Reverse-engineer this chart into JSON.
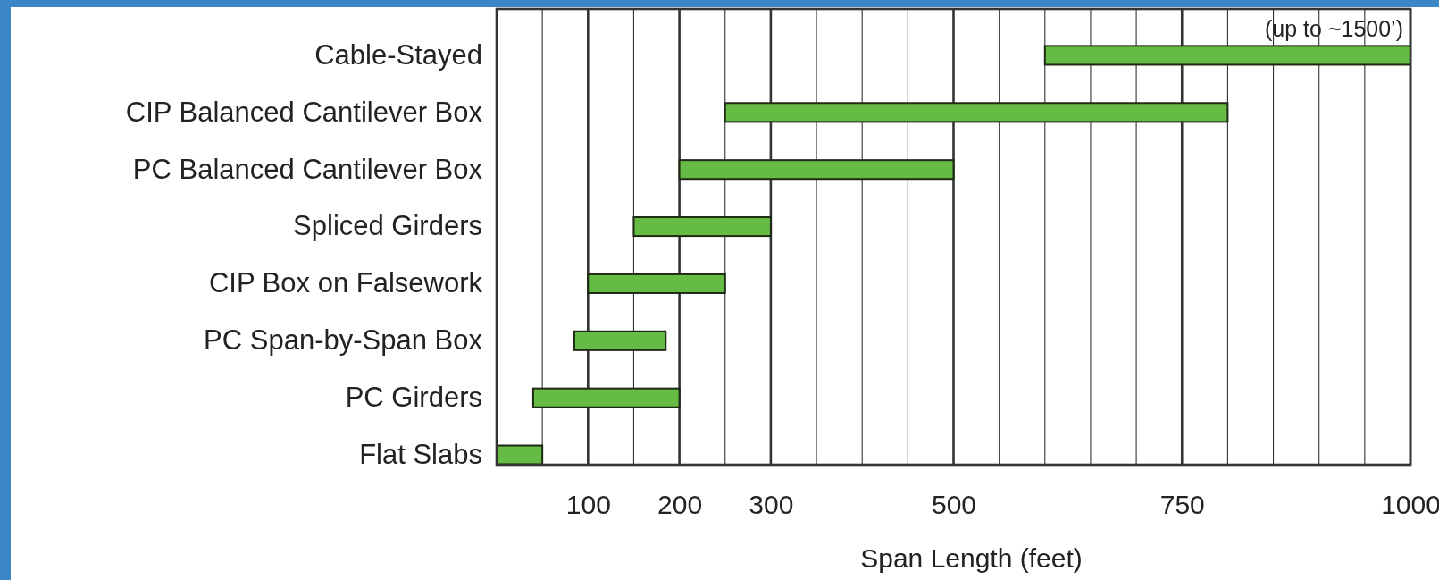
{
  "chart_data": {
    "type": "bar",
    "orientation": "horizontal",
    "xlabel": "Span Length (feet)",
    "categories": [
      "Cable-Stayed",
      "CIP Balanced Cantilever Box",
      "PC Balanced Cantilever Box",
      "Spliced Girders",
      "CIP Box on Falsework",
      "PC Span-by-Span Box",
      "PC Girders",
      "Flat Slabs"
    ],
    "base": [
      600,
      250,
      200,
      150,
      100,
      85,
      40,
      0
    ],
    "values": [
      400,
      550,
      300,
      150,
      150,
      100,
      160,
      50
    ],
    "color": "#66bb44",
    "xlim": [
      0,
      1000
    ],
    "xticks": [
      {
        "value": 50,
        "label": null
      },
      100,
      {
        "value": 150,
        "label": null
      },
      200,
      {
        "value": 250,
        "label": null
      },
      300,
      {
        "value": 350,
        "label": null
      },
      {
        "value": 400,
        "label": null
      },
      {
        "value": 450,
        "label": null
      },
      500,
      {
        "value": 550,
        "label": null
      },
      {
        "value": 600,
        "label": null
      },
      {
        "value": 650,
        "label": null
      },
      {
        "value": 700,
        "label": null
      },
      750,
      {
        "value": 800,
        "label": null
      },
      {
        "value": 850,
        "label": null
      },
      {
        "value": 900,
        "label": null
      },
      {
        "value": 950,
        "label": null
      },
      1000
    ],
    "grid": "x",
    "annotations": [
      {
        "text": "(up to ~1500’)",
        "x": 1000,
        "y": "Cable-Stayed"
      }
    ]
  }
}
